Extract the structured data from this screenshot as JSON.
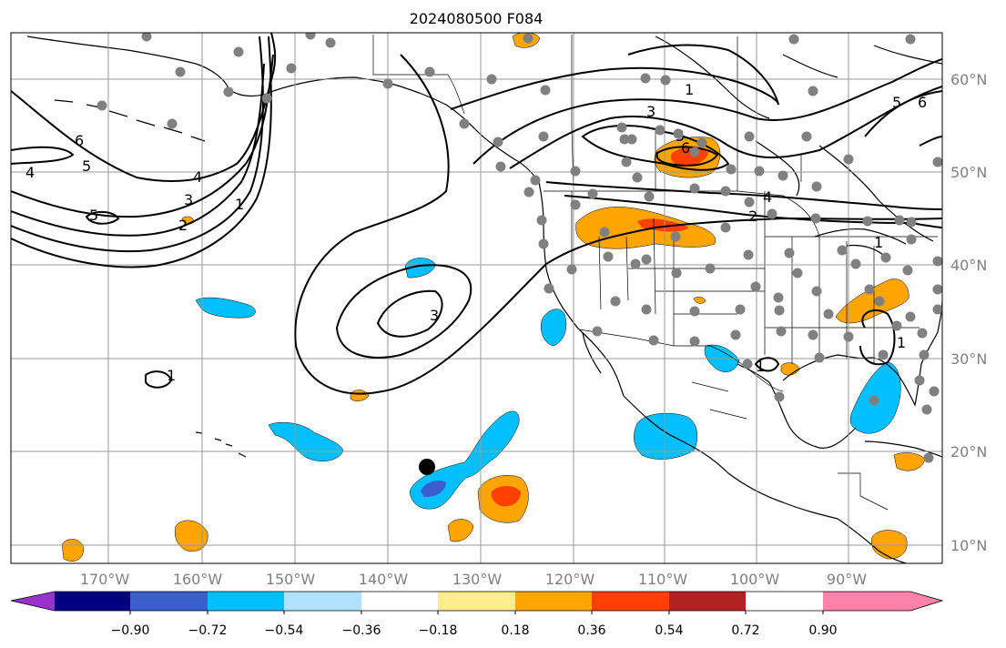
{
  "title": "2024080500 F084",
  "map_extent": {
    "lon": [
      -180,
      -80
    ],
    "lat": [
      7,
      65
    ]
  },
  "lon_labels": [
    "170°W",
    "160°W",
    "150°W",
    "140°W",
    "130°W",
    "120°W",
    "110°W",
    "100°W",
    "90°W"
  ],
  "lat_labels": [
    "60°N",
    "50°N",
    "40°N",
    "30°N",
    "20°N",
    "10°N"
  ],
  "colorbar": {
    "colors": [
      "#9932cc",
      "#000080",
      "#3a5fcd",
      "#00bfff",
      "#b0e2ff",
      "#ffffff",
      "#ffec8b",
      "#ffa500",
      "#ff4000",
      "#b22222",
      "#ff82ab"
    ],
    "tick_labels": [
      "−0.90",
      "−0.72",
      "−0.54",
      "−0.36",
      "−0.18",
      "0.18",
      "0.36",
      "0.54",
      "0.72",
      "0.90"
    ]
  },
  "contour_labels": [
    "1",
    "2",
    "3",
    "4",
    "5",
    "6",
    "3",
    "5",
    "6",
    "4",
    "2",
    "1",
    "1",
    "2",
    "3",
    "4",
    "5",
    "6",
    "5",
    "3",
    "1",
    "1",
    "5",
    "6",
    "1"
  ],
  "colors": {
    "land_dot": "#808080",
    "marker": "#000000",
    "grid": "#999999",
    "axis_label": "#808080"
  }
}
